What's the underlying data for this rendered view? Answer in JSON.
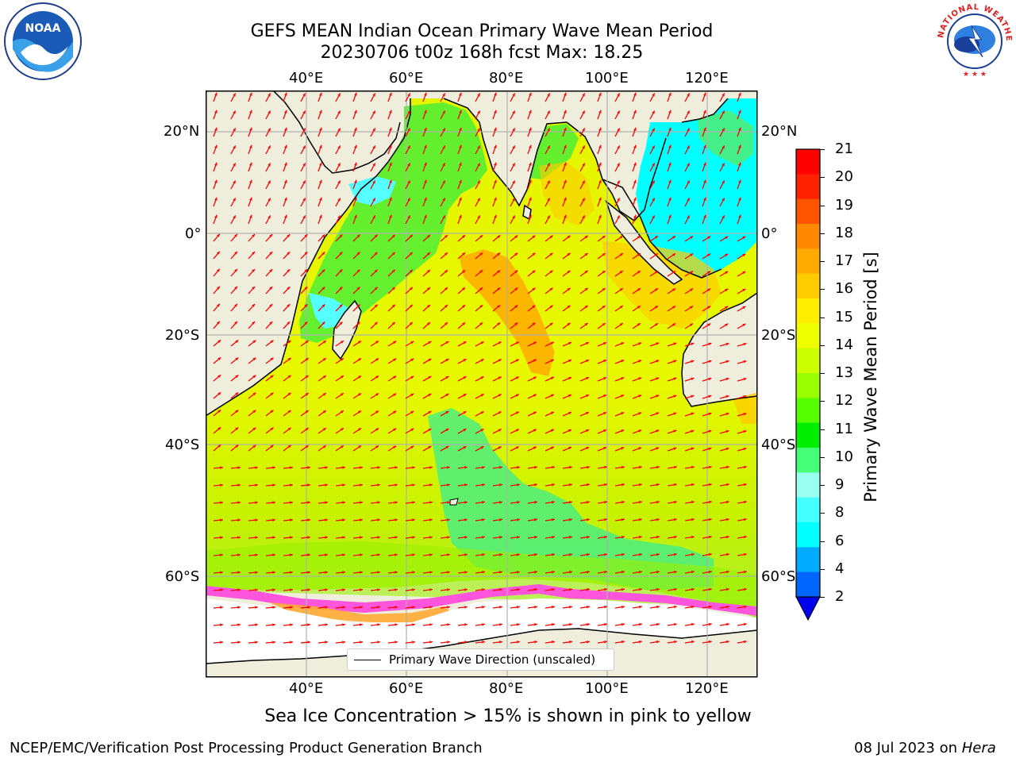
{
  "title": {
    "line1": "GEFS MEAN Indian Ocean Primary Wave Mean Period",
    "line2": "20230706 t00z 168h fcst   Max: 18.25"
  },
  "map": {
    "lon_ticks": [
      "40°E",
      "60°E",
      "80°E",
      "100°E",
      "120°E"
    ],
    "lat_ticks_left": [
      "20°N",
      "0°",
      "20°S",
      "40°S",
      "60°S"
    ],
    "lat_ticks_right": [
      "20°N",
      "0°",
      "20°S",
      "40°S",
      "60°S"
    ],
    "legend": "Primary Wave Direction (unscaled)",
    "colors": {
      "land": "#efeedd",
      "grid": "#b0b0b0",
      "arrow": "#ff0000",
      "ice": "#ff55dd"
    }
  },
  "colorbar": {
    "title": "Primary Wave Mean Period [s]",
    "labels": [
      "21",
      "20",
      "19",
      "18",
      "17",
      "16",
      "15",
      "14",
      "13",
      "12",
      "11",
      "10",
      "9",
      "8",
      "6",
      "4",
      "2"
    ],
    "colors": [
      "#ff0000",
      "#ff2200",
      "#ff5500",
      "#ff8800",
      "#ffaa00",
      "#ffcc00",
      "#ffee00",
      "#eeff00",
      "#ccff00",
      "#99ff00",
      "#55ff00",
      "#00ee00",
      "#44ff77",
      "#99ffee",
      "#44ffff",
      "#00ffff",
      "#00aaff",
      "#0066ff"
    ]
  },
  "notes": {
    "sea_ice": "Sea Ice Concentration > 15% is shown in pink to yellow",
    "branch": "NCEP/EMC/Verification Post Processing Product Generation Branch",
    "date": "08 Jul 2023 on ",
    "host": "Hera"
  },
  "logos": {
    "noaa": "NOAA",
    "nws": "NATIONAL WEATHER SERVICE"
  }
}
